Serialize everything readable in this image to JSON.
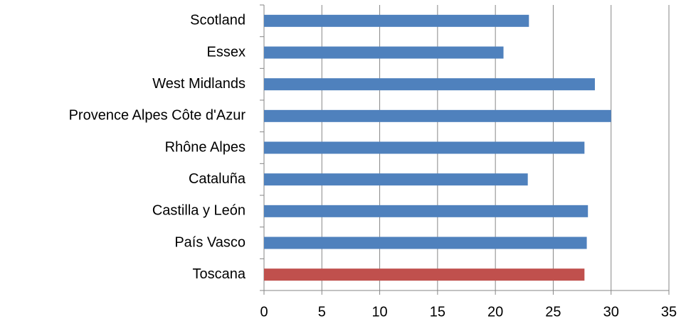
{
  "chart_data": {
    "type": "barh",
    "categories": [
      "Scotland",
      "Essex",
      "West Midlands",
      "Provence Alpes Côte d'Azur",
      "Rhône Alpes",
      "Cataluña",
      "Castilla y León",
      "País Vasco",
      "Toscana"
    ],
    "values": [
      22.9,
      20.7,
      28.6,
      30.0,
      27.7,
      22.8,
      28.0,
      27.9,
      27.7
    ],
    "colors": [
      "#4f81bd",
      "#4f81bd",
      "#4f81bd",
      "#4f81bd",
      "#4f81bd",
      "#4f81bd",
      "#4f81bd",
      "#4f81bd",
      "#c0504d"
    ],
    "xlim": [
      0,
      35
    ],
    "xticks": [
      0,
      5,
      10,
      15,
      20,
      25,
      30,
      35
    ],
    "grid": true
  }
}
